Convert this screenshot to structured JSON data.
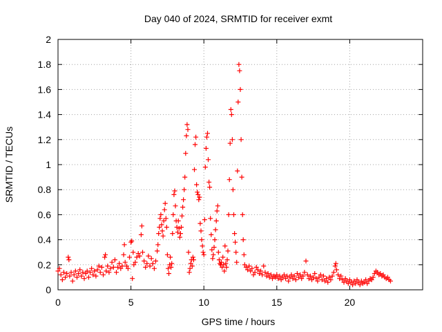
{
  "chart_data": {
    "type": "scatter",
    "title": "Day 040 of 2024, SRMTID for receiver exmt",
    "xlabel": "GPS time / hours",
    "ylabel": "SRMTID / TECUs",
    "xlim": [
      0,
      25
    ],
    "ylim": [
      0,
      2
    ],
    "xticks": [
      0,
      5,
      10,
      15,
      20
    ],
    "xtick_labels": [
      "0",
      "5",
      "10",
      "15",
      "20"
    ],
    "yticks": [
      0,
      0.2,
      0.4,
      0.6,
      0.8,
      1,
      1.2,
      1.4,
      1.6,
      1.8,
      2
    ],
    "ytick_labels": [
      "0",
      "0.2",
      "0.4",
      "0.6",
      "0.8",
      "1",
      "1.2",
      "1.4",
      "1.6",
      "1.8",
      "2"
    ],
    "grid": true,
    "marker": "+",
    "color": "#ff0000",
    "series": [
      {
        "name": "SRMTID",
        "points": [
          [
            0.0,
            0.15
          ],
          [
            0.1,
            0.17
          ],
          [
            0.2,
            0.12
          ],
          [
            0.3,
            0.08
          ],
          [
            0.4,
            0.14
          ],
          [
            0.5,
            0.1
          ],
          [
            0.6,
            0.13
          ],
          [
            0.7,
            0.26
          ],
          [
            0.75,
            0.24
          ],
          [
            0.8,
            0.11
          ],
          [
            0.9,
            0.14
          ],
          [
            1.0,
            0.07
          ],
          [
            1.1,
            0.12
          ],
          [
            1.2,
            0.15
          ],
          [
            1.3,
            0.1
          ],
          [
            1.4,
            0.13
          ],
          [
            1.5,
            0.16
          ],
          [
            1.6,
            0.11
          ],
          [
            1.7,
            0.14
          ],
          [
            1.8,
            0.09
          ],
          [
            1.9,
            0.13
          ],
          [
            2.0,
            0.15
          ],
          [
            2.1,
            0.1
          ],
          [
            2.2,
            0.14
          ],
          [
            2.3,
            0.17
          ],
          [
            2.4,
            0.12
          ],
          [
            2.5,
            0.15
          ],
          [
            2.6,
            0.11
          ],
          [
            2.7,
            0.16
          ],
          [
            2.8,
            0.19
          ],
          [
            2.9,
            0.14
          ],
          [
            3.0,
            0.18
          ],
          [
            3.1,
            0.12
          ],
          [
            3.2,
            0.26
          ],
          [
            3.25,
            0.28
          ],
          [
            3.3,
            0.15
          ],
          [
            3.4,
            0.19
          ],
          [
            3.5,
            0.14
          ],
          [
            3.6,
            0.17
          ],
          [
            3.7,
            0.22
          ],
          [
            3.8,
            0.18
          ],
          [
            3.9,
            0.24
          ],
          [
            4.0,
            0.14
          ],
          [
            4.1,
            0.18
          ],
          [
            4.2,
            0.21
          ],
          [
            4.3,
            0.17
          ],
          [
            4.4,
            0.19
          ],
          [
            4.5,
            0.28
          ],
          [
            4.55,
            0.36
          ],
          [
            4.6,
            0.22
          ],
          [
            4.7,
            0.19
          ],
          [
            4.8,
            0.17
          ],
          [
            4.9,
            0.26
          ],
          [
            5.0,
            0.38
          ],
          [
            5.05,
            0.39
          ],
          [
            5.1,
            0.09
          ],
          [
            5.15,
            0.3
          ],
          [
            5.2,
            0.2
          ],
          [
            5.3,
            0.22
          ],
          [
            5.4,
            0.26
          ],
          [
            5.5,
            0.29
          ],
          [
            5.6,
            0.27
          ],
          [
            5.7,
            0.44
          ],
          [
            5.75,
            0.51
          ],
          [
            5.8,
            0.3
          ],
          [
            5.9,
            0.23
          ],
          [
            6.0,
            0.18
          ],
          [
            6.1,
            0.21
          ],
          [
            6.2,
            0.27
          ],
          [
            6.3,
            0.19
          ],
          [
            6.4,
            0.25
          ],
          [
            6.5,
            0.21
          ],
          [
            6.6,
            0.17
          ],
          [
            6.7,
            0.23
          ],
          [
            6.8,
            0.31
          ],
          [
            6.85,
            0.36
          ],
          [
            6.9,
            0.45
          ],
          [
            6.95,
            0.5
          ],
          [
            7.0,
            0.57
          ],
          [
            7.05,
            0.6
          ],
          [
            7.1,
            0.52
          ],
          [
            7.15,
            0.47
          ],
          [
            7.2,
            0.43
          ],
          [
            7.25,
            0.55
          ],
          [
            7.3,
            0.64
          ],
          [
            7.35,
            0.69
          ],
          [
            7.4,
            0.57
          ],
          [
            7.45,
            0.5
          ],
          [
            7.5,
            0.28
          ],
          [
            7.55,
            0.17
          ],
          [
            7.6,
            0.13
          ],
          [
            7.65,
            0.2
          ],
          [
            7.7,
            0.26
          ],
          [
            7.75,
            0.18
          ],
          [
            7.8,
            0.21
          ],
          [
            7.85,
            0.45
          ],
          [
            7.9,
            0.6
          ],
          [
            7.95,
            0.76
          ],
          [
            8.0,
            0.79
          ],
          [
            8.05,
            0.67
          ],
          [
            8.1,
            0.55
          ],
          [
            8.15,
            0.5
          ],
          [
            8.2,
            0.46
          ],
          [
            8.25,
            0.55
          ],
          [
            8.3,
            0.49
          ],
          [
            8.35,
            0.42
          ],
          [
            8.4,
            0.45
          ],
          [
            8.45,
            0.5
          ],
          [
            8.5,
            0.59
          ],
          [
            8.55,
            0.66
          ],
          [
            8.6,
            0.72
          ],
          [
            8.65,
            0.8
          ],
          [
            8.7,
            0.9
          ],
          [
            8.75,
            1.09
          ],
          [
            8.8,
            1.23
          ],
          [
            8.85,
            1.32
          ],
          [
            8.9,
            1.28
          ],
          [
            8.95,
            0.3
          ],
          [
            9.0,
            0.14
          ],
          [
            9.05,
            0.17
          ],
          [
            9.1,
            0.21
          ],
          [
            9.15,
            0.24
          ],
          [
            9.2,
            0.19
          ],
          [
            9.25,
            0.26
          ],
          [
            9.3,
            0.24
          ],
          [
            9.35,
            0.96
          ],
          [
            9.4,
            1.16
          ],
          [
            9.45,
            1.22
          ],
          [
            9.5,
            0.84
          ],
          [
            9.55,
            0.78
          ],
          [
            9.6,
            0.76
          ],
          [
            9.65,
            0.72
          ],
          [
            9.7,
            0.74
          ],
          [
            9.75,
            0.53
          ],
          [
            9.8,
            0.47
          ],
          [
            9.85,
            0.4
          ],
          [
            9.9,
            0.35
          ],
          [
            9.95,
            0.3
          ],
          [
            10.0,
            0.28
          ],
          [
            10.05,
            0.56
          ],
          [
            10.1,
            0.98
          ],
          [
            10.15,
            1.13
          ],
          [
            10.2,
            1.22
          ],
          [
            10.25,
            1.25
          ],
          [
            10.3,
            1.04
          ],
          [
            10.35,
            0.86
          ],
          [
            10.4,
            0.82
          ],
          [
            10.45,
            0.57
          ],
          [
            10.5,
            0.44
          ],
          [
            10.55,
            0.32
          ],
          [
            10.6,
            0.25
          ],
          [
            10.65,
            0.28
          ],
          [
            10.7,
            0.34
          ],
          [
            10.75,
            0.4
          ],
          [
            10.8,
            0.48
          ],
          [
            10.85,
            0.55
          ],
          [
            10.9,
            0.63
          ],
          [
            10.95,
            0.67
          ],
          [
            11.0,
            0.3
          ],
          [
            11.05,
            0.24
          ],
          [
            11.1,
            0.21
          ],
          [
            11.15,
            0.2
          ],
          [
            11.2,
            0.22
          ],
          [
            11.25,
            0.18
          ],
          [
            11.3,
            0.26
          ],
          [
            11.35,
            0.2
          ],
          [
            11.4,
            0.15
          ],
          [
            11.45,
            0.35
          ],
          [
            11.5,
            0.21
          ],
          [
            11.55,
            0.18
          ],
          [
            11.6,
            0.24
          ],
          [
            11.65,
            0.31
          ],
          [
            11.7,
            0.6
          ],
          [
            11.75,
            0.88
          ],
          [
            11.8,
            1.17
          ],
          [
            11.85,
            1.44
          ],
          [
            11.9,
            1.4
          ],
          [
            11.95,
            1.2
          ],
          [
            12.0,
            0.8
          ],
          [
            12.05,
            0.6
          ],
          [
            12.1,
            0.45
          ],
          [
            12.15,
            0.38
          ],
          [
            12.2,
            0.3
          ],
          [
            12.25,
            0.22
          ],
          [
            12.3,
            0.95
          ],
          [
            12.35,
            1.5
          ],
          [
            12.4,
            1.8
          ],
          [
            12.45,
            1.75
          ],
          [
            12.5,
            1.6
          ],
          [
            12.55,
            1.2
          ],
          [
            12.6,
            0.9
          ],
          [
            12.65,
            0.6
          ],
          [
            12.7,
            0.4
          ],
          [
            12.75,
            0.28
          ],
          [
            12.8,
            0.2
          ],
          [
            12.9,
            0.18
          ],
          [
            13.0,
            0.16
          ],
          [
            13.1,
            0.19
          ],
          [
            13.2,
            0.15
          ],
          [
            13.3,
            0.17
          ],
          [
            13.4,
            0.12
          ],
          [
            13.5,
            0.14
          ],
          [
            13.6,
            0.18
          ],
          [
            13.7,
            0.16
          ],
          [
            13.8,
            0.13
          ],
          [
            13.9,
            0.15
          ],
          [
            14.0,
            0.12
          ],
          [
            14.1,
            0.19
          ],
          [
            14.2,
            0.14
          ],
          [
            14.3,
            0.11
          ],
          [
            14.4,
            0.13
          ],
          [
            14.5,
            0.1
          ],
          [
            14.6,
            0.12
          ],
          [
            14.7,
            0.09
          ],
          [
            14.8,
            0.11
          ],
          [
            14.9,
            0.1
          ],
          [
            15.0,
            0.12
          ],
          [
            15.1,
            0.09
          ],
          [
            15.2,
            0.11
          ],
          [
            15.3,
            0.08
          ],
          [
            15.4,
            0.1
          ],
          [
            15.5,
            0.12
          ],
          [
            15.6,
            0.09
          ],
          [
            15.7,
            0.11
          ],
          [
            15.8,
            0.07
          ],
          [
            15.9,
            0.1
          ],
          [
            16.0,
            0.12
          ],
          [
            16.1,
            0.09
          ],
          [
            16.2,
            0.11
          ],
          [
            16.3,
            0.08
          ],
          [
            16.4,
            0.13
          ],
          [
            16.5,
            0.1
          ],
          [
            16.6,
            0.12
          ],
          [
            16.7,
            0.09
          ],
          [
            16.8,
            0.11
          ],
          [
            16.9,
            0.14
          ],
          [
            17.0,
            0.23
          ],
          [
            17.1,
            0.12
          ],
          [
            17.2,
            0.09
          ],
          [
            17.3,
            0.11
          ],
          [
            17.4,
            0.08
          ],
          [
            17.5,
            0.1
          ],
          [
            17.6,
            0.13
          ],
          [
            17.7,
            0.09
          ],
          [
            17.8,
            0.07
          ],
          [
            17.9,
            0.1
          ],
          [
            18.0,
            0.12
          ],
          [
            18.1,
            0.08
          ],
          [
            18.2,
            0.11
          ],
          [
            18.3,
            0.07
          ],
          [
            18.4,
            0.09
          ],
          [
            18.5,
            0.06
          ],
          [
            18.6,
            0.1
          ],
          [
            18.7,
            0.08
          ],
          [
            18.8,
            0.11
          ],
          [
            18.9,
            0.14
          ],
          [
            19.0,
            0.19
          ],
          [
            19.05,
            0.21
          ],
          [
            19.1,
            0.16
          ],
          [
            19.2,
            0.12
          ],
          [
            19.3,
            0.09
          ],
          [
            19.4,
            0.11
          ],
          [
            19.5,
            0.08
          ],
          [
            19.6,
            0.06
          ],
          [
            19.7,
            0.09
          ],
          [
            19.8,
            0.07
          ],
          [
            19.9,
            0.05
          ],
          [
            20.0,
            0.08
          ],
          [
            20.1,
            0.06
          ],
          [
            20.2,
            0.04
          ],
          [
            20.3,
            0.07
          ],
          [
            20.4,
            0.05
          ],
          [
            20.5,
            0.08
          ],
          [
            20.6,
            0.06
          ],
          [
            20.7,
            0.04
          ],
          [
            20.8,
            0.07
          ],
          [
            20.9,
            0.05
          ],
          [
            21.0,
            0.06
          ],
          [
            21.1,
            0.08
          ],
          [
            21.2,
            0.05
          ],
          [
            21.3,
            0.07
          ],
          [
            21.4,
            0.09
          ],
          [
            21.5,
            0.08
          ],
          [
            21.6,
            0.1
          ],
          [
            21.7,
            0.13
          ],
          [
            21.8,
            0.15
          ],
          [
            21.9,
            0.14
          ],
          [
            22.0,
            0.12
          ],
          [
            22.1,
            0.13
          ],
          [
            22.2,
            0.11
          ],
          [
            22.3,
            0.12
          ],
          [
            22.4,
            0.1
          ],
          [
            22.5,
            0.09
          ],
          [
            22.6,
            0.1
          ],
          [
            22.7,
            0.08
          ],
          [
            22.8,
            0.07
          ]
        ]
      }
    ]
  }
}
